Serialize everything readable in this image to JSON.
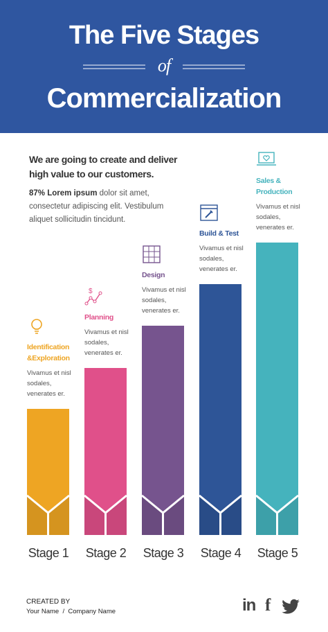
{
  "header": {
    "title_top": "The Five Stages",
    "connector": "of",
    "title_bottom": "Commercialization"
  },
  "intro": {
    "heading": "We are going to create and deliver high value to our customers.",
    "lead": "87% Lorem ipsum",
    "body": "dolor sit amet, consectetur adipiscing elit. Vestibulum aliquet sollicitudin tincidunt."
  },
  "stages": [
    {
      "name": "Identification &Exploration",
      "description": "Vivamus et nisl sodales, venerates er.",
      "label": "Stage 1",
      "color": "#eea523"
    },
    {
      "name": "Planning",
      "description": "Vivamus et nisl sodales, venerates er.",
      "label": "Stage 2",
      "color": "#e0508a"
    },
    {
      "name": "Design",
      "description": "Vivamus et nisl sodales, venerates er.",
      "label": "Stage 3",
      "color": "#76548e"
    },
    {
      "name": "Build & Test",
      "description": "Vivamus et nisl sodales, venerates er.",
      "label": "Stage 4",
      "color": "#2e5597"
    },
    {
      "name": "Sales & Production",
      "description": "Vivamus et nisl sodales, venerates er.",
      "label": "Stage 5",
      "color": "#45b3bd"
    }
  ],
  "footer": {
    "created_by": "CREATED BY",
    "name": "Your Name",
    "separator": "/",
    "company": "Company Name",
    "social": [
      "in",
      "f"
    ]
  }
}
